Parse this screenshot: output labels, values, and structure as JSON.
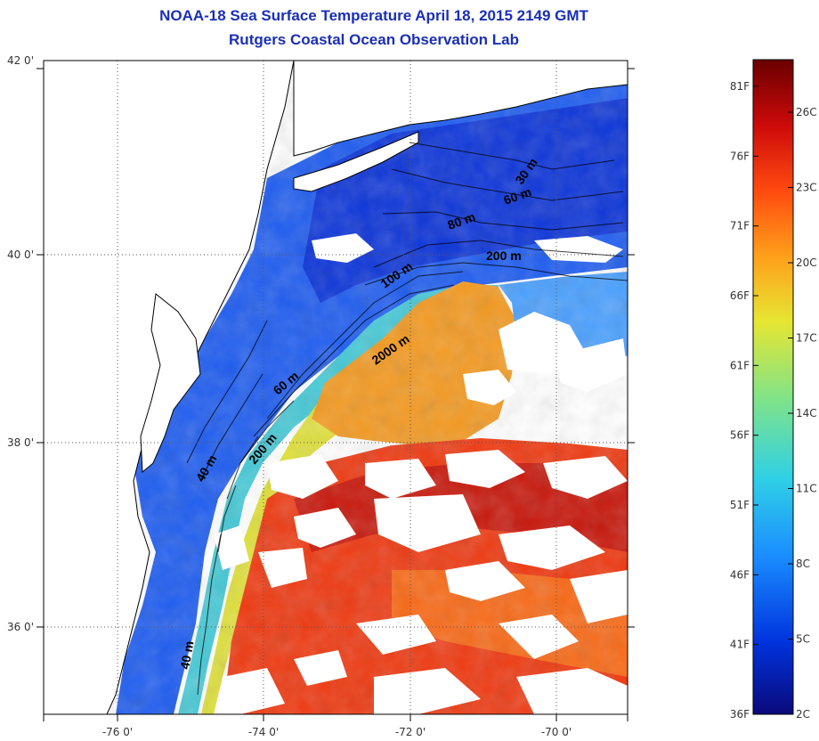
{
  "title": "NOAA-18 Sea Surface Temperature April 18, 2015 2149 GMT",
  "subtitle": "Rutgers Coastal Ocean Observation Lab",
  "axes": {
    "lat_labels": [
      "42 0'",
      "40 0'",
      "38 0'",
      "36 0'"
    ],
    "lon_labels": [
      "-76 0'",
      "-74 0'",
      "-72 0'",
      "-70 0'"
    ]
  },
  "isobath_labels": [
    "30 m",
    "60 m",
    "80 m",
    "200 m",
    "100 m",
    "2000 m",
    "60 m",
    "200 m",
    "40 m",
    "40 m"
  ],
  "colorbar": {
    "fahrenheit": [
      "81F",
      "76F",
      "71F",
      "66F",
      "61F",
      "56F",
      "51F",
      "46F",
      "41F",
      "36F"
    ],
    "celsius": [
      "26C",
      "23C",
      "20C",
      "17C",
      "14C",
      "11C",
      "8C",
      "5C",
      "2C"
    ],
    "gradient_colors": [
      "#0a0a7a",
      "#0033dd",
      "#1a8cff",
      "#2fd0e6",
      "#7fe38a",
      "#e6e632",
      "#ff9f1a",
      "#ff4a10",
      "#cc0a0a",
      "#6a0000"
    ]
  },
  "colors": {
    "title": "#1a2fb8",
    "land": "#ffffff",
    "cloud": "#ffffff",
    "coastline": "#000000"
  }
}
